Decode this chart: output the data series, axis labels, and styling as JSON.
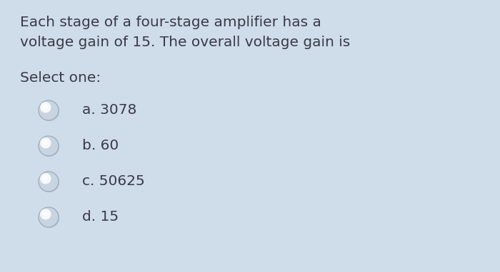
{
  "background_color": "#cfdce9",
  "title_line1": "Each stage of a four-stage amplifier has a",
  "title_line2": "voltage gain of 15. The overall voltage gain is",
  "select_label": "Select one:",
  "options": [
    "a. 3078",
    "b. 60",
    "c. 50625",
    "d. 15"
  ],
  "text_color": "#3a3a4a",
  "title_fontsize": 14.5,
  "select_fontsize": 14.5,
  "option_fontsize": 14.5
}
